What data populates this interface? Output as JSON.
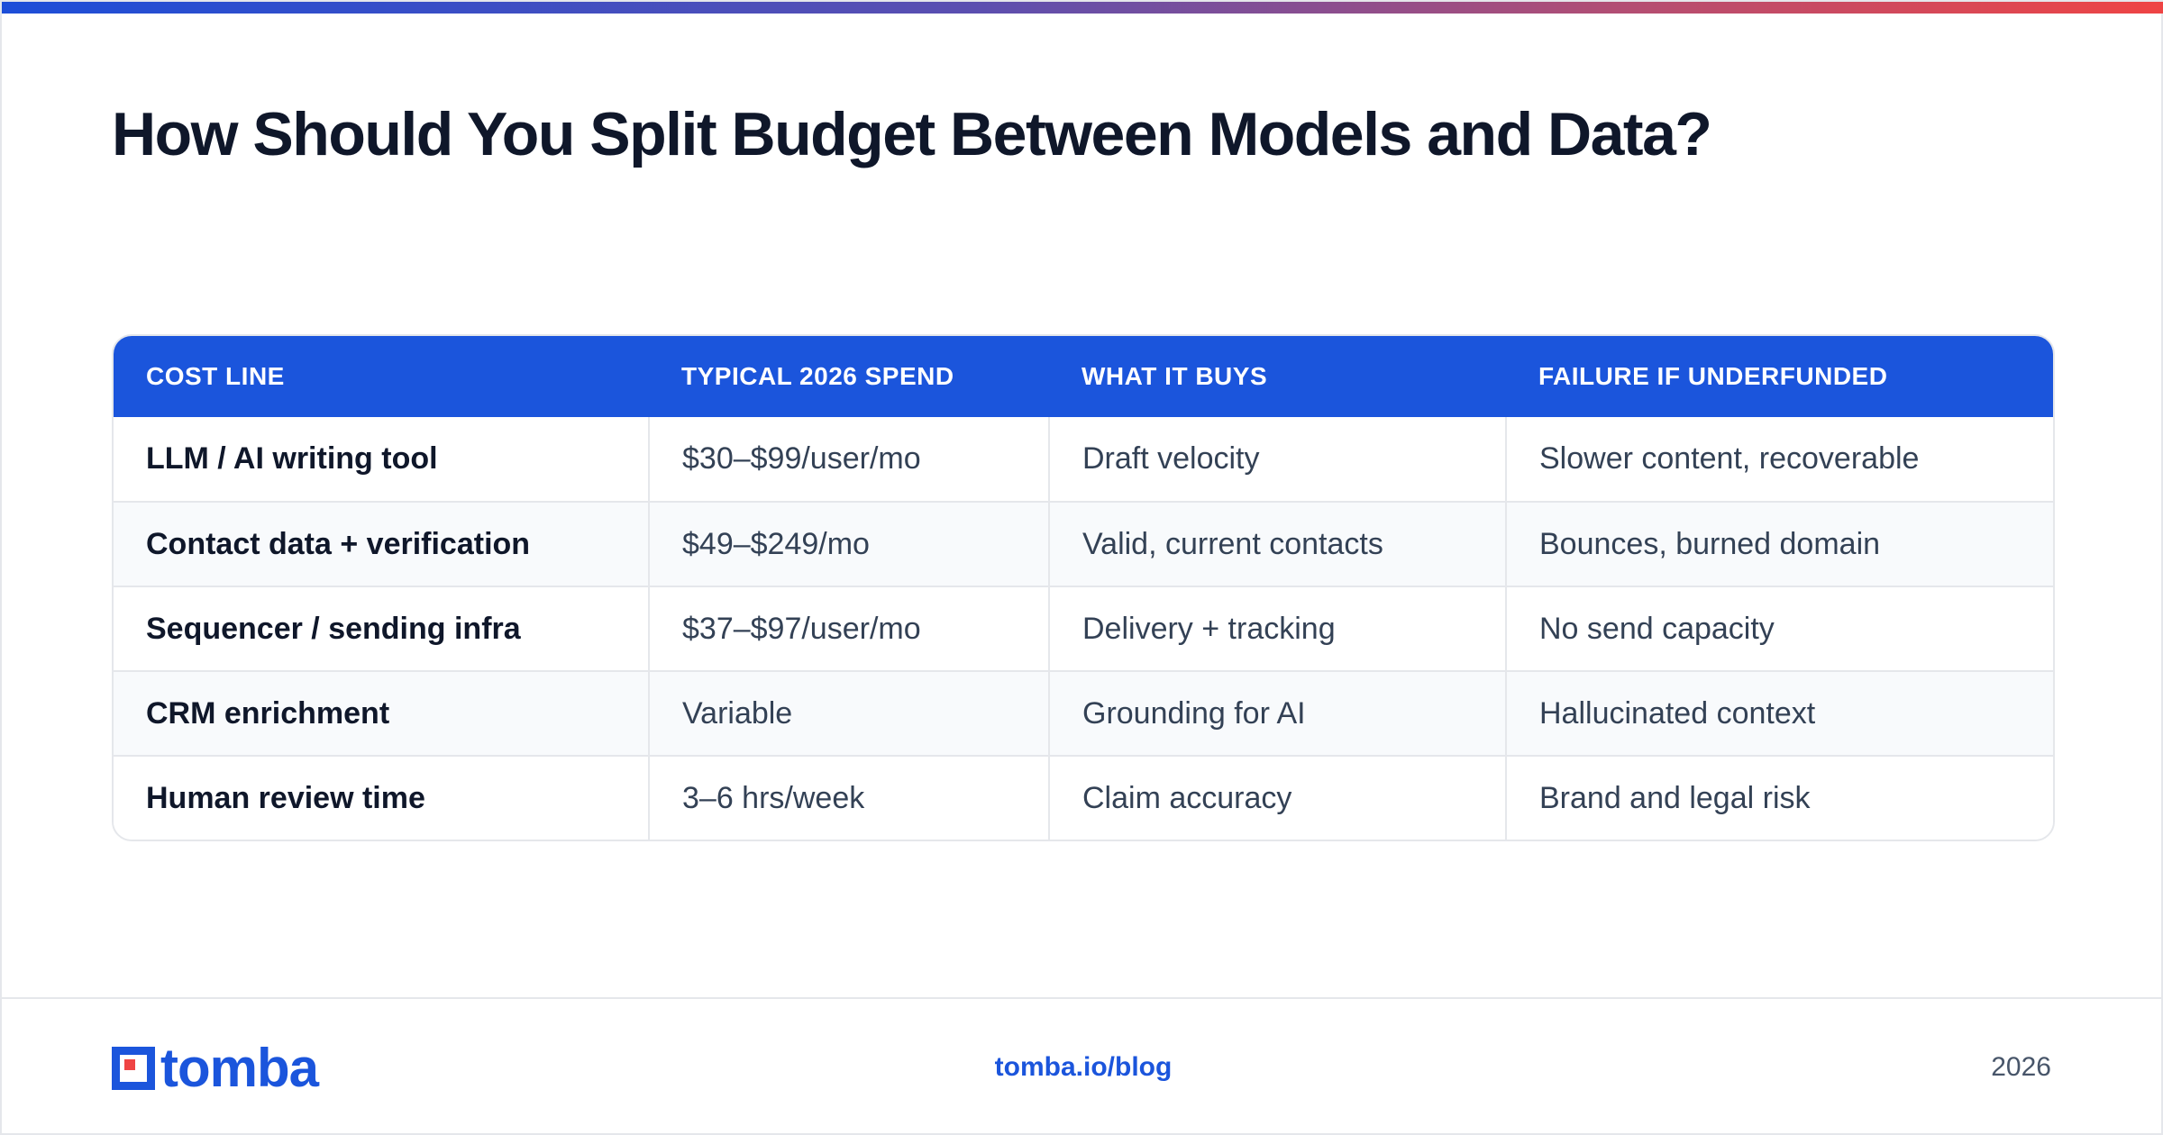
{
  "title": "How Should You Split Budget Between Models and Data?",
  "colors": {
    "accent": "#1b55dc",
    "logo_square": "#ef4444",
    "gradient_start": "#1d4ed8",
    "gradient_end": "#ef4444"
  },
  "table": {
    "headers": [
      "COST LINE",
      "TYPICAL 2026 SPEND",
      "WHAT IT BUYS",
      "FAILURE IF UNDERFUNDED"
    ],
    "rows": [
      [
        "LLM / AI writing tool",
        "$30–$99/user/mo",
        "Draft velocity",
        "Slower content, recoverable"
      ],
      [
        "Contact data + verification",
        "$49–$249/mo",
        "Valid, current contacts",
        "Bounces, burned domain"
      ],
      [
        "Sequencer / sending infra",
        "$37–$97/user/mo",
        "Delivery + tracking",
        "No send capacity"
      ],
      [
        "CRM enrichment",
        "Variable",
        "Grounding for AI",
        "Hallucinated context"
      ],
      [
        "Human review time",
        "3–6 hrs/week",
        "Claim accuracy",
        "Brand and legal risk"
      ]
    ]
  },
  "footer": {
    "logo_text": "tomba",
    "logo_icon": "tomba-logo-icon",
    "link": "tomba.io/blog",
    "year": "2026"
  }
}
